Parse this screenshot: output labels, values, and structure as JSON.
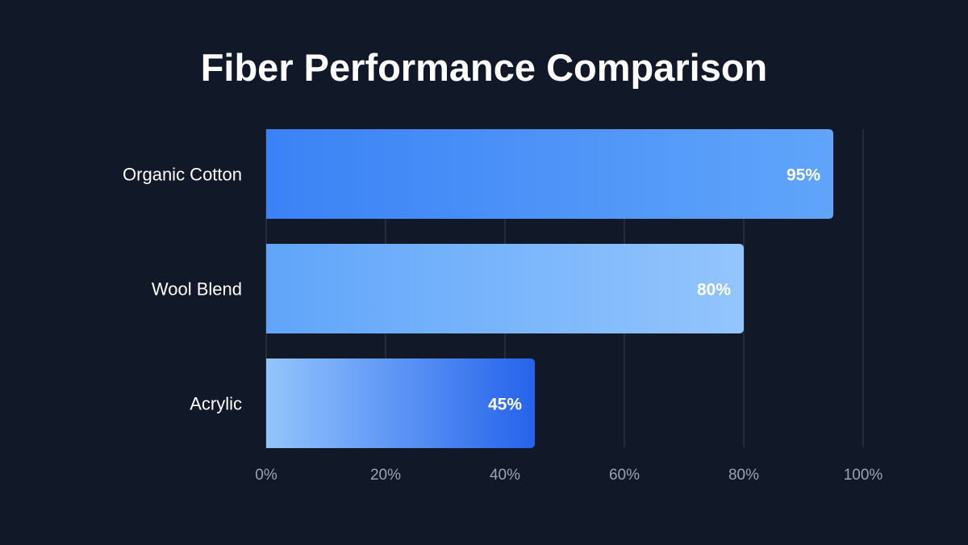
{
  "title": "Fiber Performance Comparison",
  "chart_data": {
    "type": "bar",
    "orientation": "horizontal",
    "title": "Fiber Performance Comparison",
    "xlabel": "",
    "ylabel": "",
    "xlim": [
      0,
      100
    ],
    "x_ticks": [
      "0%",
      "20%",
      "40%",
      "60%",
      "80%",
      "100%"
    ],
    "x_tick_values": [
      0,
      20,
      40,
      60,
      80,
      100
    ],
    "grid": "vertical",
    "legend": "none",
    "categories": [
      "Organic Cotton",
      "Wool Blend",
      "Acrylic"
    ],
    "values": [
      95,
      80,
      45
    ],
    "data_labels": [
      "95%",
      "80%",
      "45%"
    ],
    "bar_gradients": [
      [
        "#3b82f6",
        "#60a5fa"
      ],
      [
        "#60a5fa",
        "#93c5fd"
      ],
      [
        "#93c5fd",
        "#2563eb"
      ]
    ]
  },
  "colors": {
    "background": "#111827",
    "grid": "#374151",
    "category_label": "#ffffff",
    "tick_label": "#9ca3af",
    "data_label": "#ffffff"
  }
}
